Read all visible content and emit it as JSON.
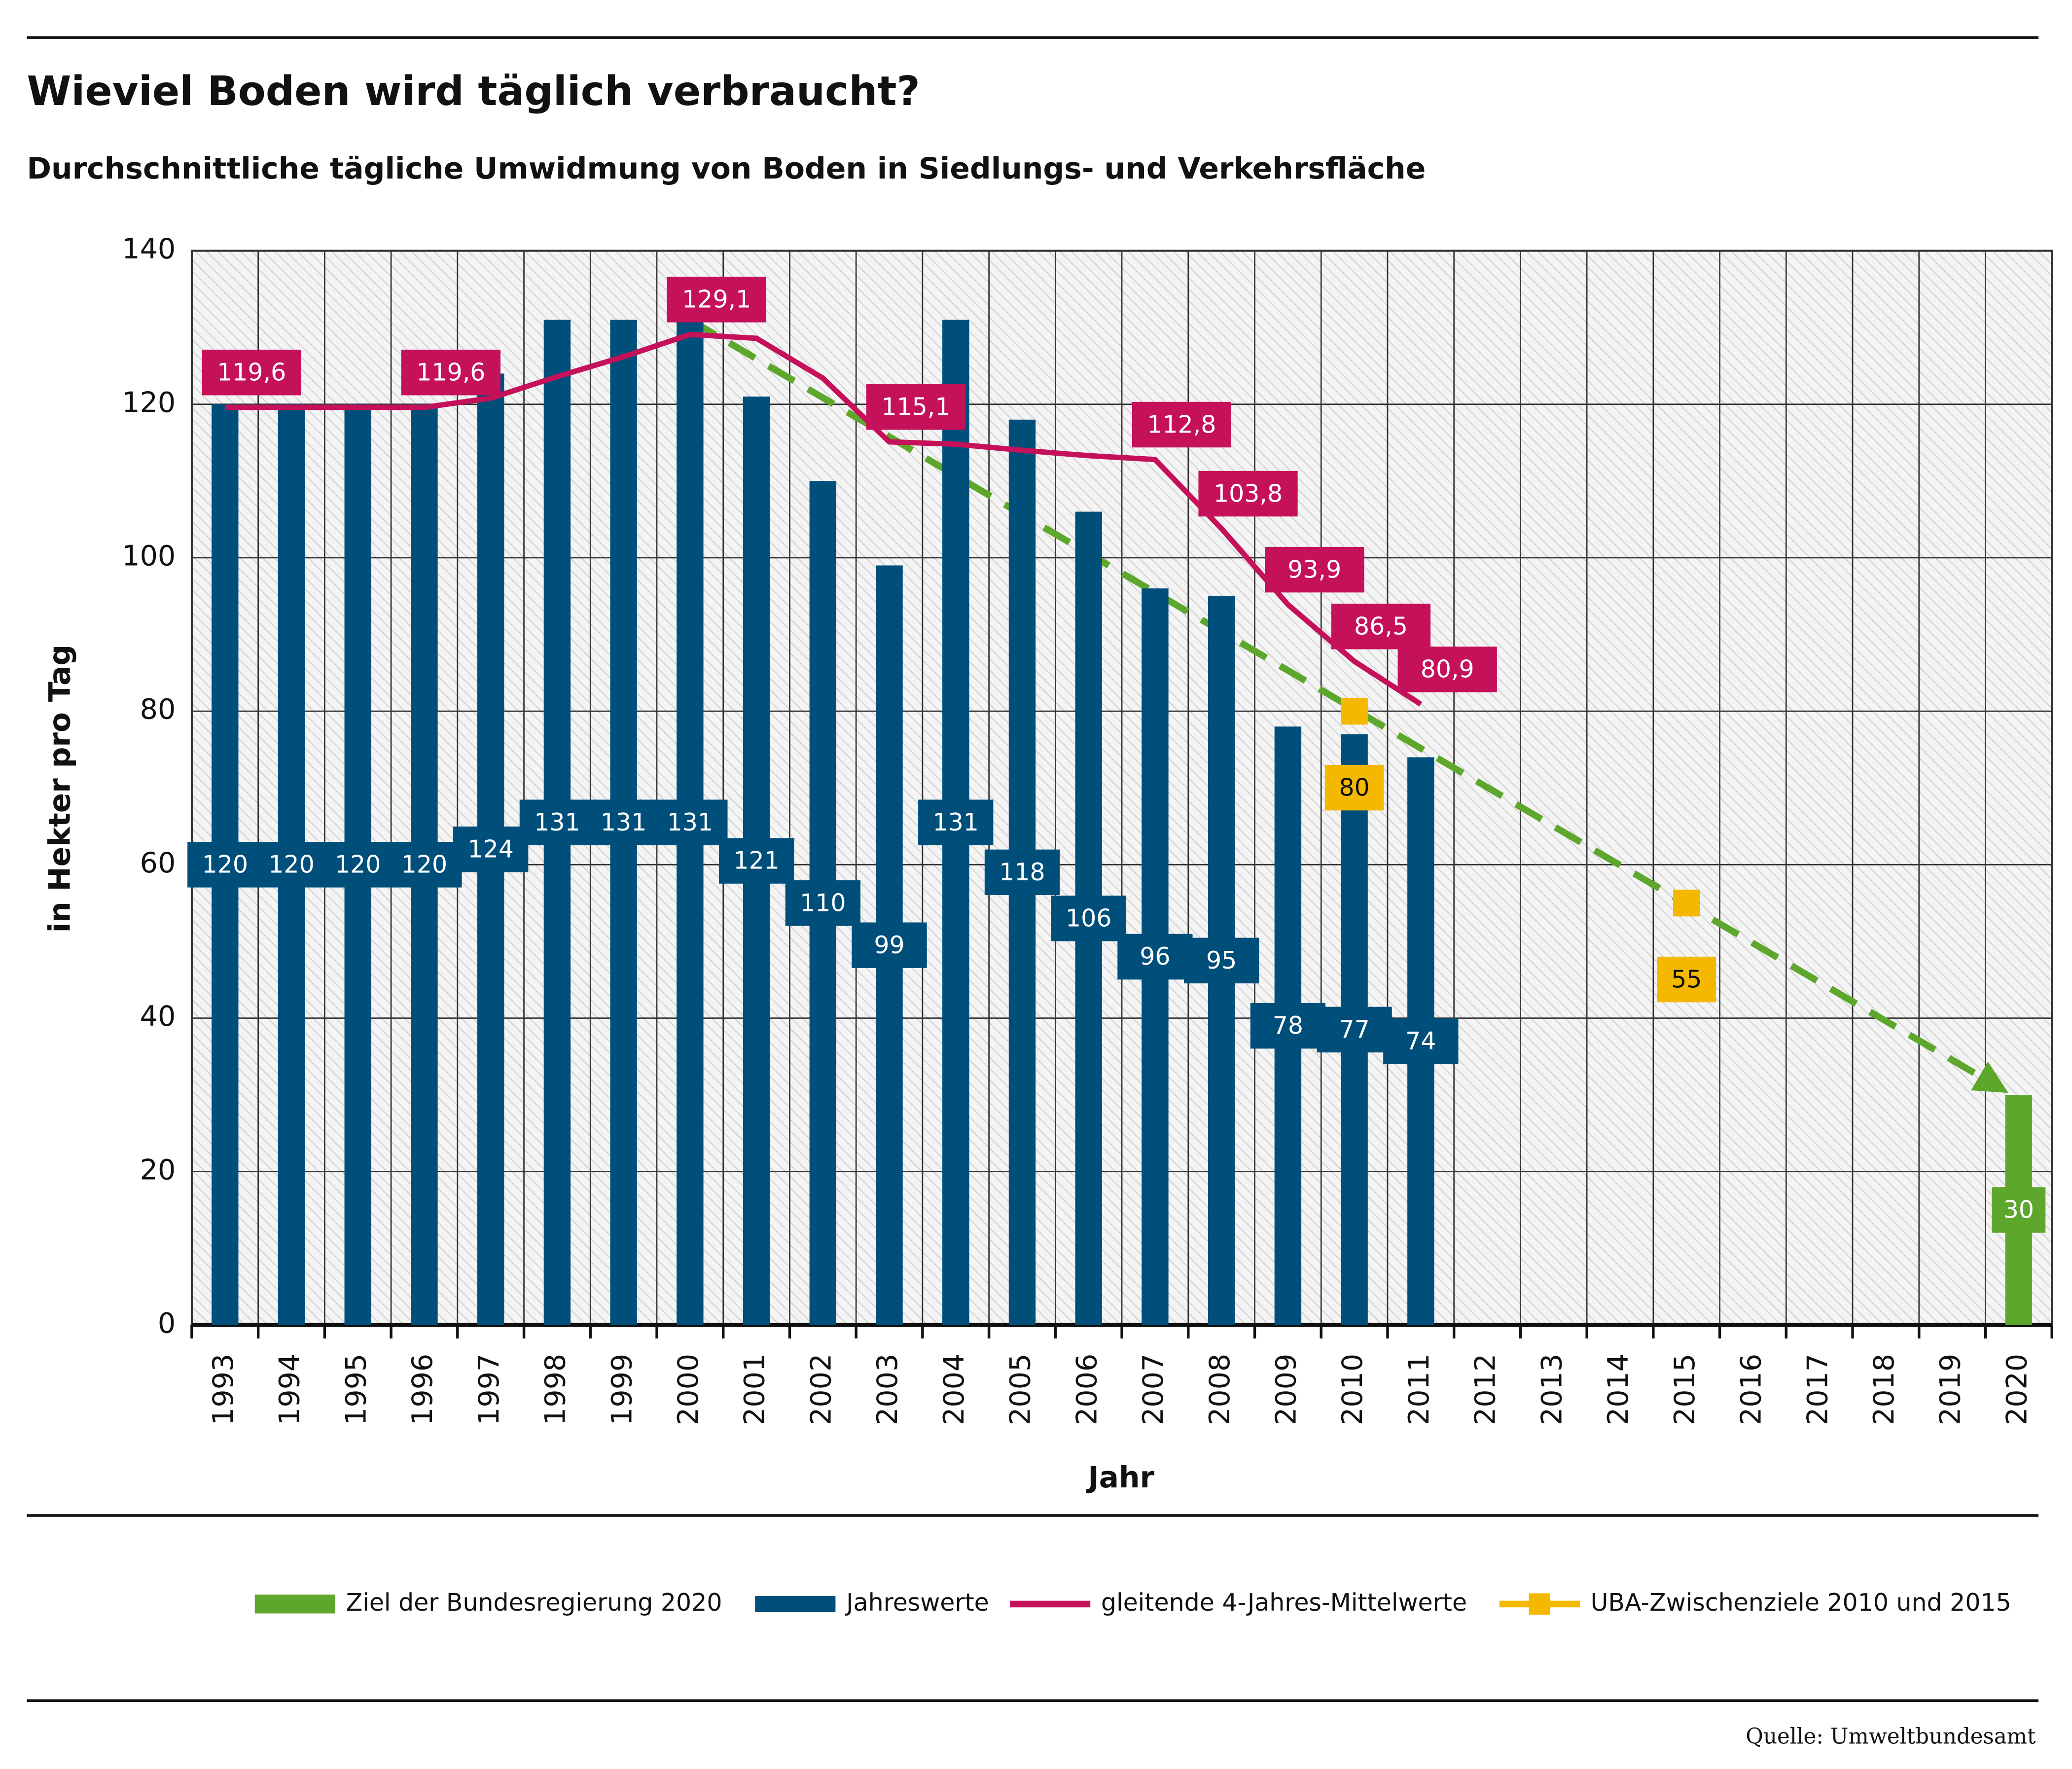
{
  "chart_data": {
    "type": "bar",
    "title": "Wieviel Boden wird täglich verbraucht?",
    "subtitle": "Durchschnittliche tägliche Umwidmung von Boden in Siedlungs- und Verkehrsfläche",
    "y_label": "in Hekter pro Tag",
    "x_label": "Jahr",
    "source": "Quelle: Umweltbundesamt",
    "categories": [
      "1993",
      "1994",
      "1995",
      "1996",
      "1997",
      "1998",
      "1999",
      "2000",
      "2001",
      "2002",
      "2003",
      "2004",
      "2005",
      "2006",
      "2007",
      "2008",
      "2009",
      "2010",
      "2011",
      "2012",
      "2013",
      "2014",
      "2015",
      "2016",
      "2017",
      "2018",
      "2019",
      "2020"
    ],
    "ylim": [
      0,
      140
    ],
    "yticks": [
      0,
      20,
      40,
      60,
      80,
      100,
      120,
      140
    ],
    "grid": true,
    "legend": "bottom",
    "series": [
      {
        "name": "Ziel der Bundesregierung 2020",
        "kind": "bar",
        "color": "#5ea72d",
        "values": [
          null,
          null,
          null,
          null,
          null,
          null,
          null,
          null,
          null,
          null,
          null,
          null,
          null,
          null,
          null,
          null,
          null,
          null,
          null,
          null,
          null,
          null,
          null,
          null,
          null,
          null,
          null,
          30
        ]
      },
      {
        "name": "Jahreswerte",
        "kind": "bar",
        "color": "#004f7b",
        "values": [
          120,
          120,
          120,
          120,
          124,
          131,
          131,
          131,
          121,
          110,
          99,
          131,
          118,
          106,
          96,
          95,
          78,
          77,
          74,
          null,
          null,
          null,
          null,
          null,
          null,
          null,
          null,
          null
        ]
      },
      {
        "name": "gleitende 4-Jahres-Mittelwerte",
        "kind": "line",
        "color": "#c5105a",
        "values": [
          119.6,
          119.6,
          119.6,
          119.6,
          120.8,
          123.6,
          126.2,
          129.1,
          128.6,
          123.4,
          115.1,
          114.8,
          114.0,
          113.3,
          112.8,
          103.8,
          93.9,
          86.5,
          80.9,
          null,
          null,
          null,
          null,
          null,
          null,
          null,
          null,
          null
        ],
        "value_labels": [
          "119,6",
          null,
          null,
          "119,6",
          null,
          null,
          null,
          "129,1",
          null,
          null,
          "115,1",
          null,
          null,
          null,
          "112,8",
          "103,8",
          "93,9",
          "86,5",
          "80,9",
          null,
          null,
          null,
          null,
          null,
          null,
          null,
          null,
          null
        ]
      },
      {
        "name": "UBA-Zwischenziele 2010 und 2015",
        "kind": "marker",
        "color": "#f5b800",
        "values": [
          null,
          null,
          null,
          null,
          null,
          null,
          null,
          null,
          null,
          null,
          null,
          null,
          null,
          null,
          null,
          null,
          null,
          80,
          null,
          null,
          null,
          null,
          55,
          null,
          null,
          null,
          null,
          null
        ]
      }
    ]
  }
}
